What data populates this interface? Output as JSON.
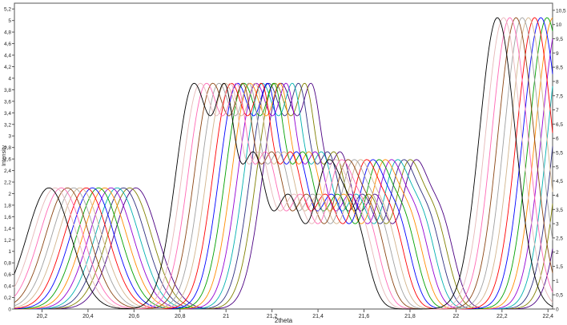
{
  "chart_data": {
    "type": "line",
    "title": "",
    "xlabel": "2theta",
    "ylabel": "Intensity",
    "xlim": [
      20.08,
      22.42
    ],
    "ylim": [
      0,
      5.3
    ],
    "y2lim": [
      0,
      10.75
    ],
    "x_ticks": [
      20.2,
      20.4,
      20.6,
      20.8,
      21,
      21.2,
      21.4,
      21.6,
      21.8,
      22,
      22.2,
      22.4
    ],
    "x_tick_labels": [
      "20,2",
      "20,4",
      "20,6",
      "20,8",
      "21",
      "21,2",
      "21,4",
      "21,6",
      "21,8",
      "22",
      "22,2",
      "22,4"
    ],
    "y_ticks": [
      0,
      0.2,
      0.4,
      0.6,
      0.8,
      1,
      1.2,
      1.4,
      1.6,
      1.8,
      2,
      2.2,
      2.4,
      2.6,
      2.8,
      3,
      3.2,
      3.4,
      3.6,
      3.8,
      4,
      4.2,
      4.4,
      4.6,
      4.8,
      5,
      5.2
    ],
    "y_tick_labels": [
      "0",
      "0,2",
      "0,4",
      "0,6",
      "0,8",
      "1",
      "1,2",
      "1,4",
      "1,6",
      "1,8",
      "2",
      "2,2",
      "2,4",
      "2,6",
      "2,8",
      "3",
      "3,2",
      "3,4",
      "3,6",
      "3,8",
      "4",
      "4,2",
      "4,4",
      "4,6",
      "4,8",
      "5",
      "5,2"
    ],
    "y2_ticks": [
      0,
      0.5,
      1,
      1.5,
      2,
      2.5,
      3,
      3.5,
      4,
      4.5,
      5,
      5.5,
      6,
      6.5,
      7,
      7.5,
      8,
      8.5,
      9,
      9.5,
      10,
      10.5
    ],
    "y2_tick_labels": [
      "0",
      "0,5",
      "1",
      "1,5",
      "2",
      "2,5",
      "3",
      "3,5",
      "4",
      "4,5",
      "5",
      "5,5",
      "6",
      "6,5",
      "7",
      "7,5",
      "8",
      "8,5",
      "9",
      "9,5",
      "10",
      "10,5"
    ],
    "grid": false,
    "legend": "none",
    "series_colors": [
      "#000000",
      "#e6b8b8",
      "#ff69b4",
      "#8b4513",
      "#a0a0a0",
      "#d2b48c",
      "#ff0000",
      "#0000ff",
      "#00a000",
      "#ff8c00",
      "#9400d3",
      "#00b0b0",
      "#2f2f7f",
      "#808000",
      "#4b0082"
    ],
    "x_shift_per_series": 0.027,
    "peaks": [
      {
        "x": 20.23,
        "height": 2.1,
        "width": 0.135
      },
      {
        "x": 20.86,
        "height": 3.9,
        "width": 0.11
      },
      {
        "x": 21.0,
        "height": 2.9,
        "width": 0.06
      },
      {
        "x": 21.12,
        "height": 2.6,
        "width": 0.075
      },
      {
        "x": 21.27,
        "height": 1.9,
        "width": 0.08
      },
      {
        "x": 21.44,
        "height": 2.4,
        "width": 0.085
      },
      {
        "x": 21.56,
        "height": 1.4,
        "width": 0.08
      },
      {
        "x": 22.18,
        "height": 5.05,
        "width": 0.11
      }
    ]
  }
}
